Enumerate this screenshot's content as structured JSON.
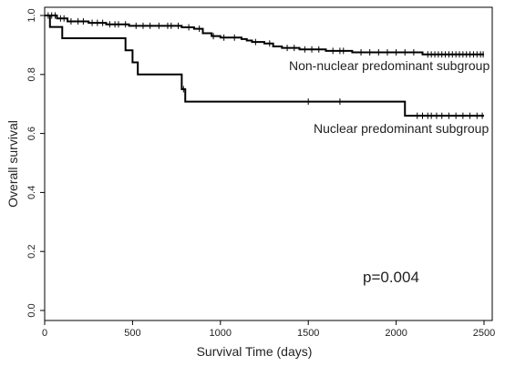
{
  "chart_data": {
    "type": "line",
    "subtype": "kaplan-meier",
    "title": "",
    "xlabel": "Survival Time (days)",
    "ylabel": "Overall survival",
    "xlim": [
      0,
      2500
    ],
    "ylim": [
      0,
      1
    ],
    "x_ticks": [
      "0",
      "500",
      "1000",
      "1500",
      "2000",
      "2500"
    ],
    "y_ticks": [
      "0.0",
      "0.2",
      "0.4",
      "0.6",
      "0.8",
      "1.0"
    ],
    "grid": false,
    "annotation": "p=0.004",
    "series": [
      {
        "name": "Non-nuclear predominant subgroup",
        "steps": [
          [
            0,
            1.0
          ],
          [
            70,
            0.99
          ],
          [
            130,
            0.98
          ],
          [
            250,
            0.975
          ],
          [
            350,
            0.97
          ],
          [
            480,
            0.965
          ],
          [
            780,
            0.96
          ],
          [
            850,
            0.955
          ],
          [
            900,
            0.94
          ],
          [
            950,
            0.93
          ],
          [
            1000,
            0.925
          ],
          [
            1120,
            0.92
          ],
          [
            1150,
            0.915
          ],
          [
            1180,
            0.91
          ],
          [
            1250,
            0.905
          ],
          [
            1300,
            0.895
          ],
          [
            1350,
            0.89
          ],
          [
            1450,
            0.885
          ],
          [
            1600,
            0.88
          ],
          [
            1750,
            0.875
          ],
          [
            2150,
            0.868
          ],
          [
            2500,
            0.868
          ]
        ],
        "censored": [
          20,
          40,
          60,
          90,
          110,
          150,
          190,
          220,
          270,
          300,
          330,
          370,
          400,
          420,
          460,
          520,
          560,
          600,
          650,
          700,
          720,
          760,
          820,
          880,
          960,
          1020,
          1080,
          1200,
          1280,
          1380,
          1420,
          1480,
          1520,
          1560,
          1640,
          1680,
          1700,
          1800,
          1850,
          1900,
          1950,
          2000,
          2050,
          2100,
          2180,
          2200,
          2220,
          2240,
          2260,
          2280,
          2300,
          2320,
          2340,
          2360,
          2380,
          2400,
          2420,
          2440,
          2460,
          2480,
          2495
        ]
      },
      {
        "name": "Nuclear predominant subgroup",
        "steps": [
          [
            0,
            1.0
          ],
          [
            30,
            0.961
          ],
          [
            100,
            0.923
          ],
          [
            460,
            0.882
          ],
          [
            500,
            0.841
          ],
          [
            530,
            0.8
          ],
          [
            780,
            0.75
          ],
          [
            800,
            0.708
          ],
          [
            2050,
            0.66
          ],
          [
            2500,
            0.66
          ]
        ],
        "censored": [
          790,
          1500,
          1680,
          2120,
          2150,
          2180,
          2200,
          2230,
          2260,
          2300,
          2340,
          2380,
          2420,
          2460,
          2490
        ]
      }
    ]
  }
}
